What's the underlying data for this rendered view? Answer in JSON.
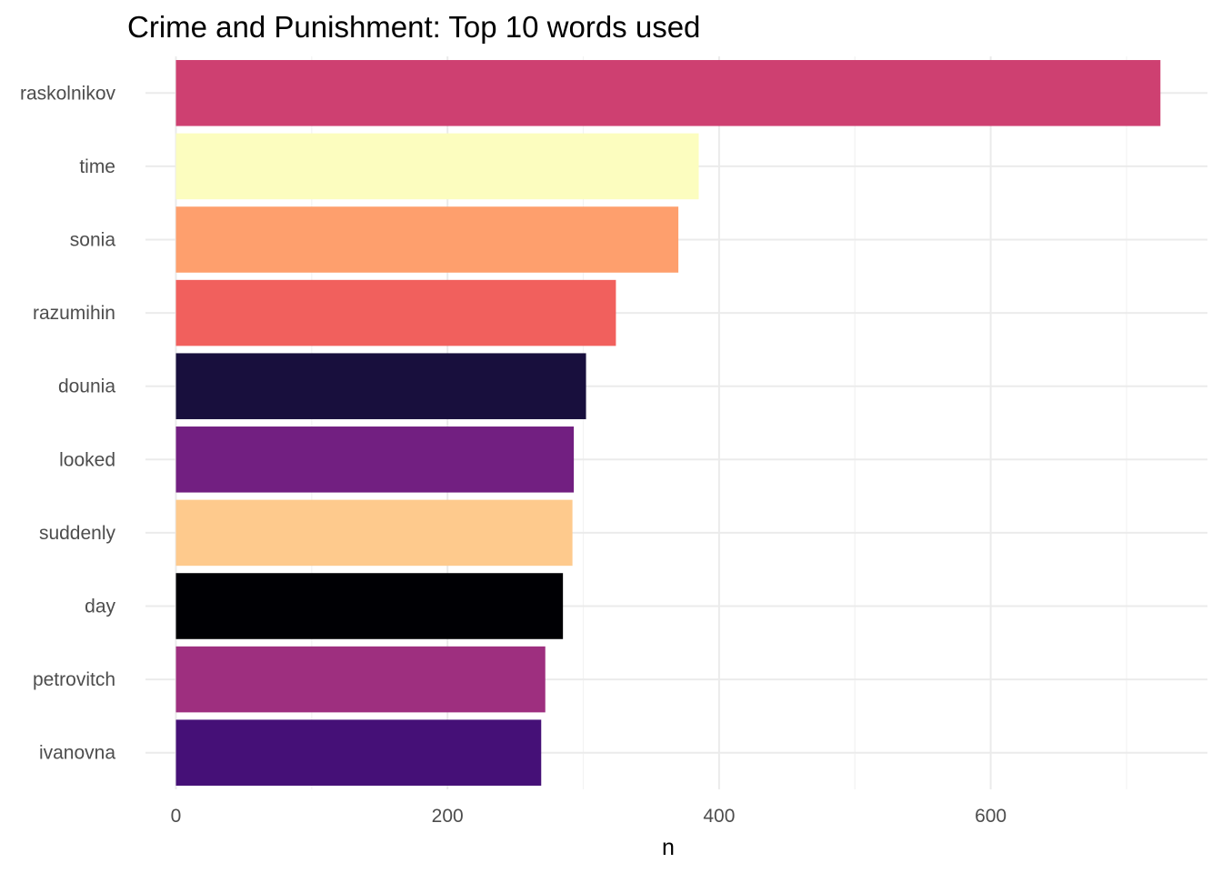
{
  "chart_data": {
    "type": "bar",
    "orientation": "horizontal",
    "title": "Crime and Punishment: Top 10 words used",
    "xlabel": "n",
    "ylabel": "",
    "xlim": [
      0,
      735
    ],
    "x_ticks": [
      0,
      200,
      400,
      600
    ],
    "x_minor_ticks": [
      100,
      300,
      500,
      700
    ],
    "grid": true,
    "legend": "none",
    "categories": [
      "raskolnikov",
      "time",
      "sonia",
      "razumihin",
      "dounia",
      "looked",
      "suddenly",
      "day",
      "petrovitch",
      "ivanovna"
    ],
    "values": [
      725,
      385,
      370,
      324,
      302,
      293,
      292,
      285,
      272,
      269
    ],
    "colors": [
      "#CE4071",
      "#FCFDBF",
      "#FE9F6D",
      "#F1605D",
      "#180F3D",
      "#721F81",
      "#FECA8D",
      "#000004",
      "#9E2F7F",
      "#451077"
    ]
  }
}
